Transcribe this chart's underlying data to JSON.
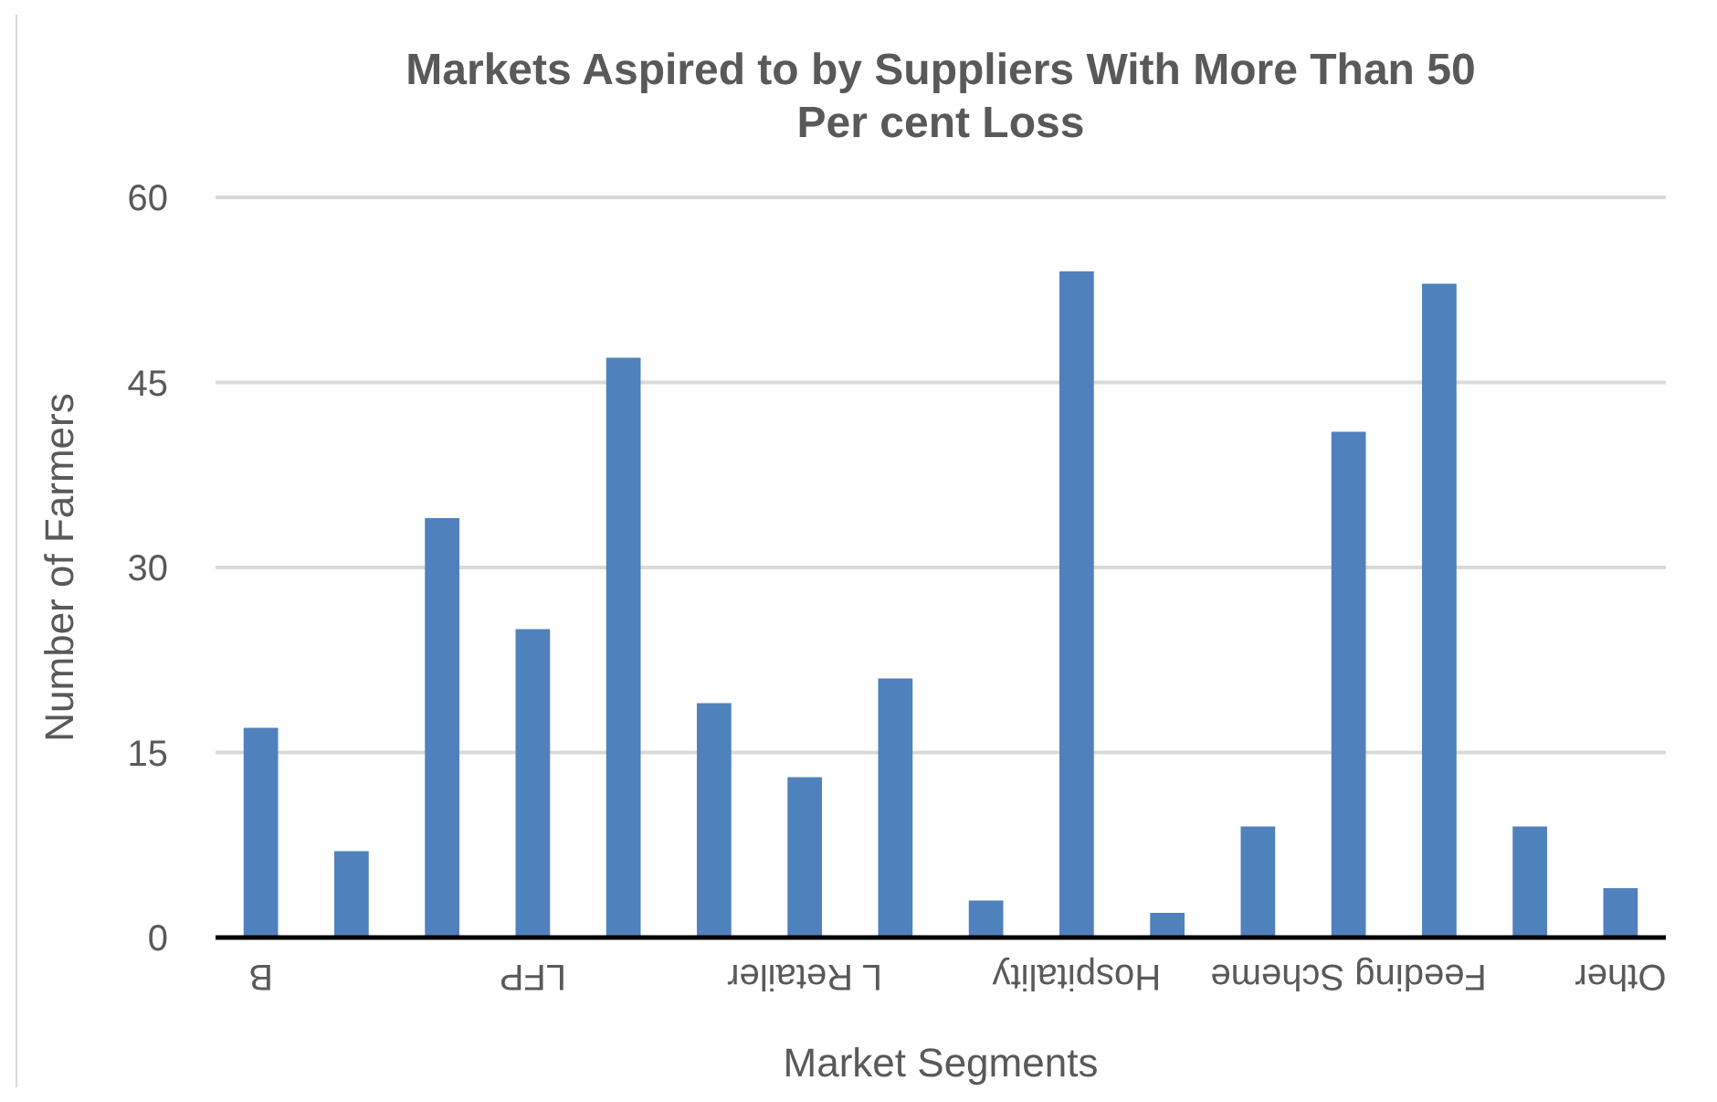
{
  "chart_data": {
    "type": "bar",
    "title": "Markets Aspired to by Suppliers With More Than 50 Per cent Loss",
    "xlabel": "Market Segments",
    "ylabel": "Number of Farmers",
    "categories": [
      "B",
      null,
      null,
      "LFP",
      null,
      null,
      "L Retailer",
      null,
      null,
      "Hospitality",
      null,
      null,
      "Feeding Scheme",
      null,
      null,
      "Other"
    ],
    "values": [
      17,
      7,
      34,
      25,
      47,
      19,
      13,
      21,
      3,
      54,
      2,
      9,
      41,
      53,
      9,
      4
    ],
    "color": "#4f81bd",
    "ylim": [
      0,
      60
    ],
    "yticks": [
      0,
      15,
      30,
      45,
      60
    ],
    "grid": "y"
  }
}
